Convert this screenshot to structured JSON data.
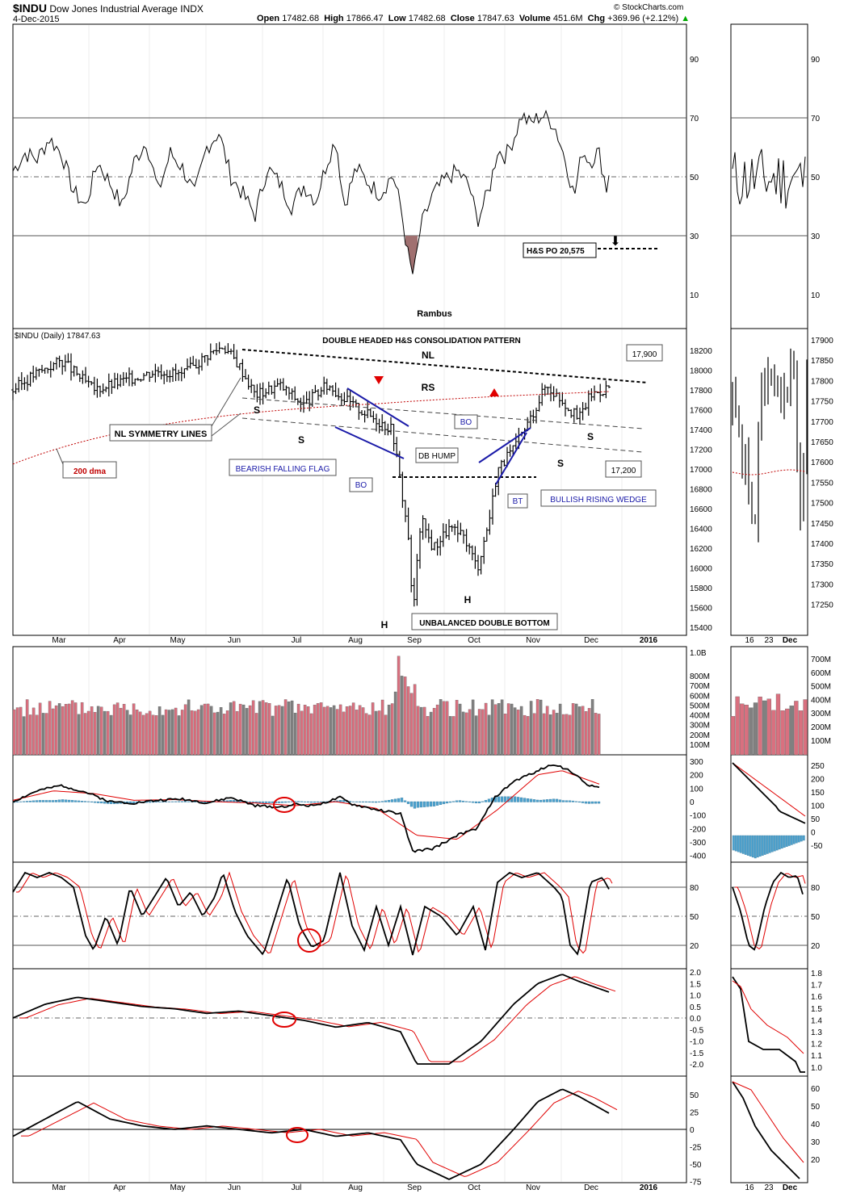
{
  "header": {
    "symbol": "$INDU",
    "name": "Dow Jones Industrial Average",
    "exchange": "INDX",
    "date": "4-Dec-2015",
    "open_label": "Open",
    "open": "17482.68",
    "high_label": "High",
    "high": "17866.47",
    "low_label": "Low",
    "low": "17482.68",
    "close_label": "Close",
    "close": "17847.63",
    "volume_label": "Volume",
    "volume": "451.6M",
    "chg_label": "Chg",
    "chg": "+369.96 (+2.12%)",
    "copyright": "© StockCharts.com"
  },
  "colors": {
    "price_bar": "#000000",
    "volume_up": "#d9707f",
    "volume_down": "#808080",
    "histogram": "#4fa3cf",
    "signal": "#e00000",
    "annotation_blue": "#1a1aa8",
    "ma_200": "#c00000",
    "oversold_fill": "#a07070"
  },
  "x_axis": {
    "months": [
      "Mar",
      "Apr",
      "May",
      "Jun",
      "Jul",
      "Aug",
      "Sep",
      "Oct",
      "Nov",
      "Dec",
      "2016"
    ],
    "right_panel_labels": [
      "16",
      "23",
      "Dec"
    ]
  },
  "panels": {
    "rsi": {
      "ticks": [
        "90",
        "70",
        "50",
        "30",
        "10"
      ],
      "author": "Rambus",
      "target_label": "H&S PO 20,575"
    },
    "price": {
      "legend": "$INDU (Daily) 17847.63",
      "title": "DOUBLE HEADED H&S CONSOLIDATION PATTERN",
      "ticks": [
        "18200",
        "18000",
        "17800",
        "17600",
        "17400",
        "17200",
        "17000",
        "16800",
        "16600",
        "16400",
        "16200",
        "16000",
        "15800",
        "15600",
        "15400"
      ],
      "right_ticks": [
        "17900",
        "17850",
        "17800",
        "17750",
        "17700",
        "17650",
        "17600",
        "17550",
        "17500",
        "17450",
        "17400",
        "17350",
        "17300",
        "17250"
      ]
    },
    "volume": {
      "ticks": [
        "1.0B",
        "800M",
        "700M",
        "600M",
        "500M",
        "400M",
        "300M",
        "200M",
        "100M"
      ]
    },
    "macd": {
      "ticks": [
        "300",
        "200",
        "100",
        "0",
        "-100",
        "-200",
        "-300",
        "-400"
      ],
      "right_ticks": [
        "250",
        "200",
        "150",
        "100",
        "50",
        "0",
        "-50"
      ]
    },
    "stoch": {
      "ticks": [
        "80",
        "50",
        "20"
      ]
    },
    "osc": {
      "ticks": [
        "2.0",
        "1.5",
        "1.0",
        "0.5",
        "0.0",
        "-0.5",
        "-1.0",
        "-1.5",
        "-2.0"
      ],
      "right_ticks": [
        "1.8",
        "1.7",
        "1.6",
        "1.5",
        "1.4",
        "1.3",
        "1.2",
        "1.1",
        "1.0"
      ]
    },
    "osc2": {
      "ticks": [
        "50",
        "25",
        "0",
        "-25",
        "-50",
        "-75"
      ],
      "right_ticks": [
        "60",
        "50",
        "40",
        "30",
        "20"
      ]
    }
  },
  "annotations": {
    "nl": "NL",
    "rs": "RS",
    "s": "S",
    "h": "H",
    "nl_symmetry": "NL SYMMETRY LINES",
    "dma": "200 dma",
    "bearish_flag": "BEARISH FALLING FLAG",
    "bo": "BO",
    "db_hump": "DB HUMP",
    "bt": "BT",
    "rising_wedge": "BULLISH RISING WEDGE",
    "double_bottom": "UNBALANCED DOUBLE BOTTOM",
    "level_17900": "17,900",
    "level_17200": "17,200"
  },
  "chart_data": [
    {
      "type": "line",
      "title": "",
      "indicator": "RSI",
      "ylim": [
        0,
        100
      ],
      "reference_lines": [
        30,
        50,
        70
      ],
      "points": [
        [
          0,
          52
        ],
        [
          15,
          58
        ],
        [
          30,
          56
        ],
        [
          45,
          63
        ],
        [
          60,
          58
        ],
        [
          75,
          45
        ],
        [
          90,
          40
        ],
        [
          105,
          55
        ],
        [
          120,
          48
        ],
        [
          135,
          40
        ],
        [
          150,
          55
        ],
        [
          165,
          62
        ],
        [
          180,
          45
        ],
        [
          195,
          58
        ],
        [
          210,
          53
        ],
        [
          225,
          44
        ],
        [
          240,
          60
        ],
        [
          255,
          65
        ],
        [
          270,
          50
        ],
        [
          285,
          44
        ],
        [
          300,
          37
        ],
        [
          315,
          53
        ],
        [
          330,
          48
        ],
        [
          345,
          40
        ],
        [
          360,
          47
        ],
        [
          375,
          42
        ],
        [
          390,
          56
        ],
        [
          400,
          63
        ],
        [
          410,
          40
        ],
        [
          425,
          53
        ],
        [
          440,
          48
        ],
        [
          455,
          44
        ],
        [
          470,
          51
        ],
        [
          480,
          40
        ],
        [
          490,
          22
        ],
        [
          496,
          16
        ],
        [
          505,
          33
        ],
        [
          520,
          44
        ],
        [
          535,
          49
        ],
        [
          550,
          52
        ],
        [
          565,
          47
        ],
        [
          575,
          35
        ],
        [
          590,
          46
        ],
        [
          600,
          59
        ],
        [
          610,
          57
        ],
        [
          620,
          63
        ],
        [
          630,
          71
        ],
        [
          640,
          68
        ],
        [
          655,
          71
        ],
        [
          670,
          68
        ],
        [
          685,
          55
        ],
        [
          695,
          43
        ],
        [
          705,
          59
        ],
        [
          715,
          55
        ],
        [
          725,
          59
        ],
        [
          735,
          46
        ],
        [
          740,
          55
        ]
      ]
    },
    {
      "type": "candlestick",
      "title": "DOUBLE HEADED H&S CONSOLIDATION PATTERN",
      "period": "Mar 2015 - Dec 2015, daily",
      "ylim": [
        15300,
        18350
      ],
      "approx_close_path": [
        [
          0,
          17800
        ],
        [
          25,
          17950
        ],
        [
          60,
          18100
        ],
        [
          100,
          17800
        ],
        [
          140,
          17900
        ],
        [
          180,
          18000
        ],
        [
          210,
          17950
        ],
        [
          240,
          18150
        ],
        [
          260,
          18250
        ],
        [
          280,
          18050
        ],
        [
          300,
          17750
        ],
        [
          330,
          17850
        ],
        [
          360,
          17650
        ],
        [
          390,
          17850
        ],
        [
          420,
          17650
        ],
        [
          450,
          17500
        ],
        [
          470,
          17400
        ],
        [
          490,
          16300
        ],
        [
          495,
          15500
        ],
        [
          505,
          16500
        ],
        [
          520,
          16200
        ],
        [
          540,
          16400
        ],
        [
          560,
          16300
        ],
        [
          575,
          16000
        ],
        [
          590,
          16500
        ],
        [
          600,
          17000
        ],
        [
          620,
          17200
        ],
        [
          640,
          17500
        ],
        [
          660,
          17850
        ],
        [
          680,
          17700
        ],
        [
          700,
          17500
        ],
        [
          715,
          17750
        ],
        [
          730,
          17800
        ],
        [
          741,
          17847
        ]
      ]
    },
    {
      "type": "bar",
      "title": "",
      "indicator": "Volume",
      "ylim": [
        0,
        1050
      ]
    },
    {
      "type": "line",
      "title": "",
      "indicator": "MACD",
      "ylim": [
        -420,
        320
      ],
      "series": [
        {
          "points": [
            [
              0,
              0
            ],
            [
              30,
              80
            ],
            [
              60,
              120
            ],
            [
              90,
              70
            ],
            [
              120,
              0
            ],
            [
              150,
              -10
            ],
            [
              180,
              10
            ],
            [
              210,
              20
            ],
            [
              240,
              -10
            ],
            [
              270,
              30
            ],
            [
              300,
              -30
            ],
            [
              330,
              -40
            ],
            [
              350,
              -20
            ],
            [
              370,
              -30
            ],
            [
              390,
              0
            ],
            [
              405,
              30
            ],
            [
              420,
              -20
            ],
            [
              450,
              -60
            ],
            [
              480,
              -90
            ],
            [
              495,
              -370
            ],
            [
              520,
              -350
            ],
            [
              550,
              -250
            ],
            [
              575,
              -200
            ],
            [
              595,
              20
            ],
            [
              620,
              150
            ],
            [
              650,
              230
            ],
            [
              670,
              280
            ],
            [
              690,
              230
            ],
            [
              710,
              130
            ],
            [
              740,
              80
            ]
          ]
        },
        {
          "points": [
            [
              0,
              10
            ],
            [
              50,
              80
            ],
            [
              100,
              60
            ],
            [
              150,
              10
            ],
            [
              200,
              15
            ],
            [
              250,
              0
            ],
            [
              300,
              -10
            ],
            [
              350,
              -30
            ],
            [
              400,
              0
            ],
            [
              450,
              -50
            ],
            [
              500,
              -250
            ],
            [
              550,
              -280
            ],
            [
              600,
              -60
            ],
            [
              650,
              200
            ],
            [
              680,
              230
            ],
            [
              740,
              100
            ]
          ]
        }
      ]
    },
    {
      "type": "line",
      "title": "",
      "indicator": "Stochastic",
      "ylim": [
        0,
        100
      ],
      "reference_lines": [
        20,
        50,
        80
      ],
      "points": [
        [
          0,
          75
        ],
        [
          15,
          95
        ],
        [
          30,
          90
        ],
        [
          45,
          95
        ],
        [
          60,
          90
        ],
        [
          75,
          80
        ],
        [
          90,
          30
        ],
        [
          100,
          15
        ],
        [
          115,
          50
        ],
        [
          130,
          20
        ],
        [
          145,
          80
        ],
        [
          160,
          50
        ],
        [
          175,
          70
        ],
        [
          190,
          90
        ],
        [
          205,
          60
        ],
        [
          220,
          75
        ],
        [
          235,
          50
        ],
        [
          250,
          70
        ],
        [
          260,
          95
        ],
        [
          275,
          55
        ],
        [
          290,
          30
        ],
        [
          310,
          10
        ],
        [
          325,
          50
        ],
        [
          340,
          90
        ],
        [
          355,
          40
        ],
        [
          370,
          18
        ],
        [
          385,
          25
        ],
        [
          405,
          95
        ],
        [
          420,
          40
        ],
        [
          435,
          15
        ],
        [
          450,
          60
        ],
        [
          465,
          20
        ],
        [
          480,
          60
        ],
        [
          495,
          10
        ],
        [
          510,
          60
        ],
        [
          530,
          50
        ],
        [
          550,
          30
        ],
        [
          570,
          60
        ],
        [
          585,
          15
        ],
        [
          600,
          85
        ],
        [
          615,
          95
        ],
        [
          630,
          90
        ],
        [
          650,
          95
        ],
        [
          670,
          80
        ],
        [
          680,
          70
        ],
        [
          690,
          20
        ],
        [
          700,
          10
        ],
        [
          715,
          85
        ],
        [
          730,
          90
        ],
        [
          740,
          75
        ]
      ]
    },
    {
      "type": "line",
      "title": "",
      "indicator": "Oscillator",
      "ylim": [
        -2.3,
        2.2
      ],
      "points": [
        [
          0,
          0
        ],
        [
          40,
          0.6
        ],
        [
          80,
          0.9
        ],
        [
          120,
          0.7
        ],
        [
          160,
          0.5
        ],
        [
          200,
          0.4
        ],
        [
          240,
          0.2
        ],
        [
          280,
          0.3
        ],
        [
          320,
          0.1
        ],
        [
          360,
          -0.1
        ],
        [
          400,
          -0.4
        ],
        [
          440,
          -0.2
        ],
        [
          480,
          -0.6
        ],
        [
          500,
          -2.0
        ],
        [
          540,
          -2.0
        ],
        [
          580,
          -1.0
        ],
        [
          620,
          0.6
        ],
        [
          650,
          1.5
        ],
        [
          680,
          1.9
        ],
        [
          700,
          1.6
        ],
        [
          740,
          1.1
        ]
      ]
    },
    {
      "type": "line",
      "title": "",
      "indicator": "Oscillator",
      "ylim": [
        -80,
        65
      ],
      "points": [
        [
          0,
          -10
        ],
        [
          40,
          15
        ],
        [
          80,
          40
        ],
        [
          120,
          15
        ],
        [
          160,
          5
        ],
        [
          200,
          0
        ],
        [
          240,
          5
        ],
        [
          280,
          0
        ],
        [
          320,
          -5
        ],
        [
          360,
          0
        ],
        [
          400,
          -10
        ],
        [
          440,
          -5
        ],
        [
          480,
          -15
        ],
        [
          500,
          -50
        ],
        [
          540,
          -72
        ],
        [
          580,
          -50
        ],
        [
          620,
          0
        ],
        [
          650,
          40
        ],
        [
          680,
          58
        ],
        [
          700,
          48
        ],
        [
          740,
          22
        ]
      ]
    }
  ]
}
